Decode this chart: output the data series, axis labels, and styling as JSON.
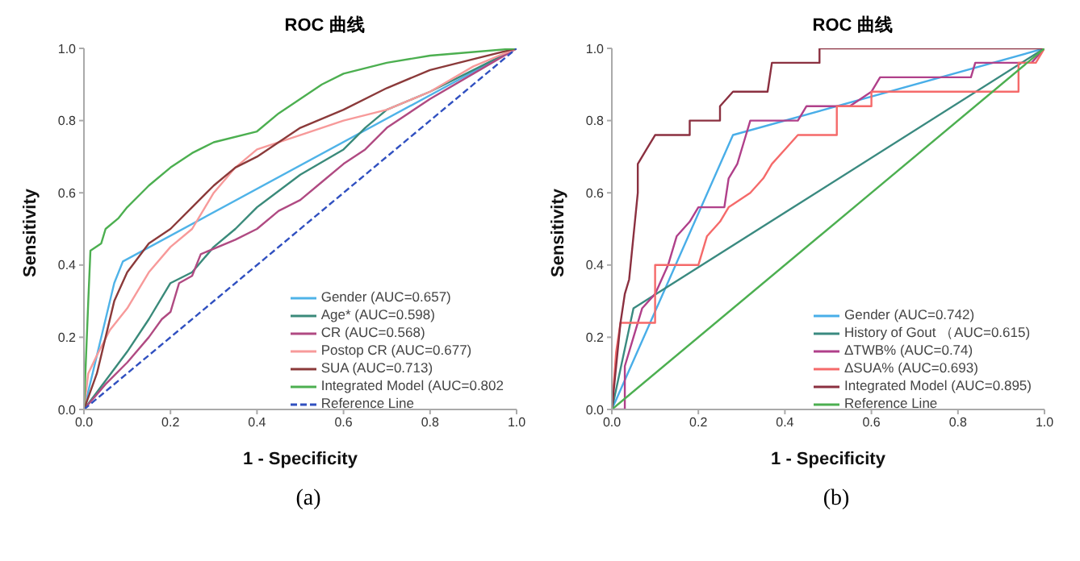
{
  "chart_data": [
    {
      "type": "line",
      "title": "ROC 曲线",
      "xlabel": "1 - Specificity",
      "ylabel": "Sensitivity",
      "annotations": [
        "(a)"
      ],
      "xlim": [
        0,
        1
      ],
      "ylim": [
        0,
        1
      ],
      "xticks": [
        {
          "value": 0,
          "label": "0.0"
        },
        {
          "value": 0.2,
          "label": "0.2"
        },
        {
          "value": 0.4,
          "label": "0.4"
        },
        {
          "value": 0.6,
          "label": "0.6"
        },
        {
          "value": 0.8,
          "label": "0.8"
        },
        {
          "value": 1,
          "label": "1.0"
        }
      ],
      "yticks": [
        {
          "value": 0,
          "label": "0.0"
        },
        {
          "value": 0.2,
          "label": "0.2"
        },
        {
          "value": 0.4,
          "label": "0.4"
        },
        {
          "value": 0.6,
          "label": "0.6"
        },
        {
          "value": 0.8,
          "label": "0.8"
        },
        {
          "value": 1,
          "label": "1.0"
        }
      ],
      "grid": false,
      "legend": "bottom right",
      "marker": "none",
      "line_style": "solid",
      "series": [
        {
          "name": "Gender (AUC=0.657)",
          "color": "#4fb3e8",
          "x": [
            0,
            0.02,
            0.05,
            0.07,
            0.09,
            1
          ],
          "values": [
            0,
            0.1,
            0.25,
            0.35,
            0.41,
            1
          ]
        },
        {
          "name": "Age* (AUC=0.598)",
          "color": "#3a8a7a",
          "x": [
            0,
            0.05,
            0.1,
            0.15,
            0.2,
            0.25,
            0.3,
            0.35,
            0.4,
            0.5,
            0.6,
            0.65,
            0.7,
            0.8,
            0.9,
            1
          ],
          "values": [
            0,
            0.08,
            0.16,
            0.25,
            0.35,
            0.38,
            0.45,
            0.5,
            0.56,
            0.65,
            0.72,
            0.78,
            0.83,
            0.88,
            0.94,
            1
          ]
        },
        {
          "name": "CR (AUC=0.568)",
          "color": "#b04a82",
          "x": [
            0,
            0.05,
            0.1,
            0.15,
            0.18,
            0.2,
            0.22,
            0.25,
            0.27,
            0.35,
            0.4,
            0.45,
            0.5,
            0.55,
            0.6,
            0.65,
            0.7,
            0.8,
            0.9,
            1
          ],
          "values": [
            0,
            0.07,
            0.13,
            0.2,
            0.25,
            0.27,
            0.35,
            0.37,
            0.43,
            0.47,
            0.5,
            0.55,
            0.58,
            0.63,
            0.68,
            0.72,
            0.78,
            0.86,
            0.93,
            1
          ]
        },
        {
          "name": "Postop CR (AUC=0.677)",
          "color": "#f79a9a",
          "x": [
            0,
            0.01,
            0.03,
            0.06,
            0.1,
            0.15,
            0.2,
            0.25,
            0.3,
            0.35,
            0.4,
            0.5,
            0.6,
            0.7,
            0.8,
            0.9,
            1
          ],
          "values": [
            0,
            0.1,
            0.15,
            0.22,
            0.28,
            0.38,
            0.45,
            0.5,
            0.6,
            0.67,
            0.72,
            0.76,
            0.8,
            0.83,
            0.88,
            0.95,
            1
          ]
        },
        {
          "name": "SUA (AUC=0.713)",
          "color": "#8b3a3a",
          "x": [
            0,
            0.03,
            0.05,
            0.07,
            0.1,
            0.15,
            0.2,
            0.25,
            0.3,
            0.35,
            0.4,
            0.45,
            0.5,
            0.6,
            0.7,
            0.8,
            0.9,
            1
          ],
          "values": [
            0,
            0.1,
            0.2,
            0.3,
            0.38,
            0.46,
            0.5,
            0.56,
            0.62,
            0.67,
            0.7,
            0.74,
            0.78,
            0.83,
            0.89,
            0.94,
            0.97,
            1
          ]
        },
        {
          "name": "Integrated Model (AUC=0.802",
          "color": "#4caf50",
          "x": [
            0,
            0.005,
            0.01,
            0.015,
            0.04,
            0.05,
            0.08,
            0.1,
            0.15,
            0.2,
            0.25,
            0.3,
            0.4,
            0.45,
            0.5,
            0.55,
            0.6,
            0.7,
            0.8,
            1
          ],
          "values": [
            0,
            0.15,
            0.3,
            0.44,
            0.46,
            0.5,
            0.53,
            0.56,
            0.62,
            0.67,
            0.71,
            0.74,
            0.77,
            0.82,
            0.86,
            0.9,
            0.93,
            0.96,
            0.98,
            1
          ]
        },
        {
          "name": "Reference Line",
          "color": "#3050c0",
          "line_style": "dashed",
          "x": [
            0,
            1
          ],
          "values": [
            0,
            1
          ]
        }
      ]
    },
    {
      "type": "line",
      "title": "ROC 曲线",
      "xlabel": "1 - Specificity",
      "ylabel": "Sensitivity",
      "annotations": [
        "(b)"
      ],
      "xlim": [
        0,
        1
      ],
      "ylim": [
        0,
        1
      ],
      "xticks": [
        {
          "value": 0,
          "label": "0.0"
        },
        {
          "value": 0.2,
          "label": "0.2"
        },
        {
          "value": 0.4,
          "label": "0.4"
        },
        {
          "value": 0.6,
          "label": "0.6"
        },
        {
          "value": 0.8,
          "label": "0.8"
        },
        {
          "value": 1,
          "label": "1.0"
        }
      ],
      "yticks": [
        {
          "value": 0,
          "label": "0.0"
        },
        {
          "value": 0.2,
          "label": "0.2"
        },
        {
          "value": 0.4,
          "label": "0.4"
        },
        {
          "value": 0.6,
          "label": "0.6"
        },
        {
          "value": 0.8,
          "label": "0.8"
        },
        {
          "value": 1,
          "label": "1.0"
        }
      ],
      "grid": false,
      "legend": "bottom right",
      "marker": "none",
      "line_style": "solid",
      "series": [
        {
          "name": "Gender (AUC=0.742)",
          "color": "#49aee8",
          "x": [
            0,
            0.28,
            1
          ],
          "values": [
            0,
            0.76,
            1
          ]
        },
        {
          "name": "History of Gout （AUC=0.615)",
          "color": "#3a8a80",
          "x": [
            0,
            0.05,
            1
          ],
          "values": [
            0,
            0.28,
            1
          ]
        },
        {
          "name": "ΔTWB% (AUC=0.74)",
          "color": "#b0408a",
          "x": [
            0,
            0.03,
            0.03,
            0.05,
            0.07,
            0.1,
            0.13,
            0.15,
            0.18,
            0.2,
            0.26,
            0.27,
            0.29,
            0.31,
            0.32,
            0.43,
            0.45,
            0.55,
            0.6,
            0.62,
            0.83,
            0.84,
            0.97,
            1
          ],
          "values": [
            0,
            0,
            0.12,
            0.2,
            0.28,
            0.32,
            0.4,
            0.48,
            0.52,
            0.56,
            0.56,
            0.64,
            0.68,
            0.76,
            0.8,
            0.8,
            0.84,
            0.84,
            0.88,
            0.92,
            0.92,
            0.96,
            0.96,
            1
          ]
        },
        {
          "name": "ΔSUA% (AUC=0.693)",
          "color": "#f56a6a",
          "x": [
            0,
            0.01,
            0.02,
            0.1,
            0.1,
            0.2,
            0.22,
            0.25,
            0.27,
            0.32,
            0.35,
            0.37,
            0.4,
            0.43,
            0.52,
            0.52,
            0.6,
            0.6,
            0.94,
            0.94,
            0.98,
            1
          ],
          "values": [
            0,
            0.16,
            0.24,
            0.24,
            0.4,
            0.4,
            0.48,
            0.52,
            0.56,
            0.6,
            0.64,
            0.68,
            0.72,
            0.76,
            0.76,
            0.84,
            0.84,
            0.88,
            0.88,
            0.96,
            0.96,
            1
          ]
        },
        {
          "name": "Integrated Model (AUC=0.895)",
          "color": "#8b3040",
          "x": [
            0,
            0.01,
            0.02,
            0.03,
            0.04,
            0.05,
            0.06,
            0.06,
            0.08,
            0.1,
            0.18,
            0.18,
            0.25,
            0.25,
            0.28,
            0.36,
            0.37,
            0.48,
            0.48,
            1
          ],
          "values": [
            0,
            0.12,
            0.24,
            0.32,
            0.36,
            0.48,
            0.6,
            0.68,
            0.72,
            0.76,
            0.76,
            0.8,
            0.8,
            0.84,
            0.88,
            0.88,
            0.96,
            0.96,
            1,
            1
          ]
        },
        {
          "name": "Reference Line",
          "color": "#4caf50",
          "x": [
            0,
            1
          ],
          "values": [
            0,
            1
          ]
        }
      ]
    }
  ]
}
